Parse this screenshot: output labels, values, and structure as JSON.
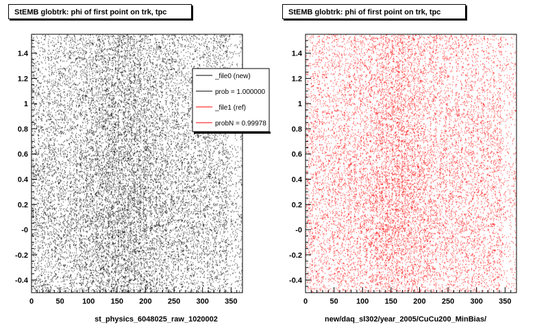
{
  "chart_data": [
    {
      "type": "scatter",
      "title": "StEMB globtrk: phi of first point on trk, tpc",
      "xlabel": "st_physics_6048025_raw_1020002",
      "ylabel": "",
      "xlim": [
        0,
        370
      ],
      "ylim": [
        -0.5,
        1.55
      ],
      "x_ticks": [
        0,
        50,
        100,
        150,
        200,
        250,
        300,
        350
      ],
      "y_ticks": [
        -0.4,
        -0.2,
        0,
        0.2,
        0.4,
        0.6,
        0.8,
        1,
        1.2,
        1.4
      ],
      "y_tick_labels": [
        "-0.4",
        "-0.2",
        "-0",
        "0.2",
        "0.4",
        "0.6",
        "0.8",
        "1",
        "1.2",
        "1.4"
      ],
      "marker_color": "#000000",
      "density_peak_x": 160,
      "legend": {
        "placement": "top-right",
        "entries": [
          {
            "label": "_file0 (new)",
            "color": "#000000"
          },
          {
            "label": "prob = 1.000000",
            "color": "#000000"
          },
          {
            "label": "_file1 (ref)",
            "color": "#ff0000"
          },
          {
            "label": "probN = 0.99978",
            "color": "#ff0000"
          }
        ]
      }
    },
    {
      "type": "scatter",
      "title": "StEMB globtrk: phi of first point on trk, tpc",
      "xlabel": "new/daq_sl302/year_2005/CuCu200_MinBias/",
      "ylabel": "",
      "xlim": [
        0,
        370
      ],
      "ylim": [
        -0.5,
        1.55
      ],
      "x_ticks": [
        0,
        50,
        100,
        150,
        200,
        250,
        300,
        350
      ],
      "y_ticks": [
        -0.4,
        -0.2,
        0,
        0.2,
        0.4,
        0.6,
        0.8,
        1,
        1.2,
        1.4
      ],
      "y_tick_labels": [
        "-0.4",
        "-0.2",
        "-0",
        "0.2",
        "0.4",
        "0.6",
        "0.8",
        "1",
        "1.2",
        "1.4"
      ],
      "marker_color": "#ff0000",
      "density_peak_x": 160
    }
  ]
}
